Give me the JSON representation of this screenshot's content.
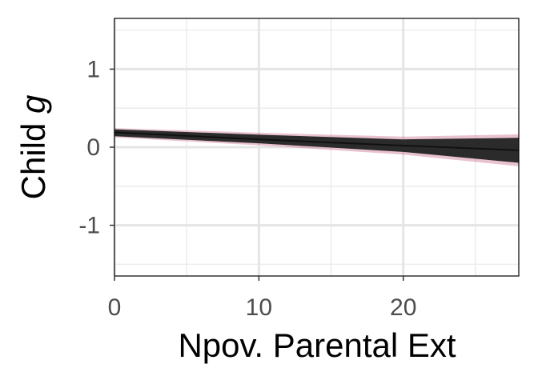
{
  "chart_data": {
    "type": "line",
    "title": "",
    "xlabel": "Npov. Parental Ext",
    "ylabel_prefix": "Child ",
    "ylabel_italic": "g",
    "xlim": [
      0,
      28
    ],
    "ylim": [
      -1.65,
      1.65
    ],
    "x_ticks": [
      0,
      10,
      20
    ],
    "x_tick_labels": [
      "0",
      "10",
      "20"
    ],
    "y_ticks": [
      -1,
      0,
      1
    ],
    "y_tick_labels": [
      "-1",
      "0",
      "1"
    ],
    "grid": true,
    "legend": "none",
    "band": {
      "x": [
        0,
        10,
        20,
        28
      ],
      "lower": [
        0.14,
        0.05,
        -0.06,
        -0.2
      ],
      "upper": [
        0.23,
        0.16,
        0.1,
        0.12
      ],
      "mean": [
        0.19,
        0.1,
        0.02,
        -0.04
      ],
      "fill_color": "#2b2b2b",
      "halo_color": "#c0507a"
    },
    "colors": {
      "panel_border": "#000000",
      "grid_major": "#e5e5e5",
      "grid_minor": "#ededed",
      "tick_label": "#4d4d4d"
    }
  }
}
